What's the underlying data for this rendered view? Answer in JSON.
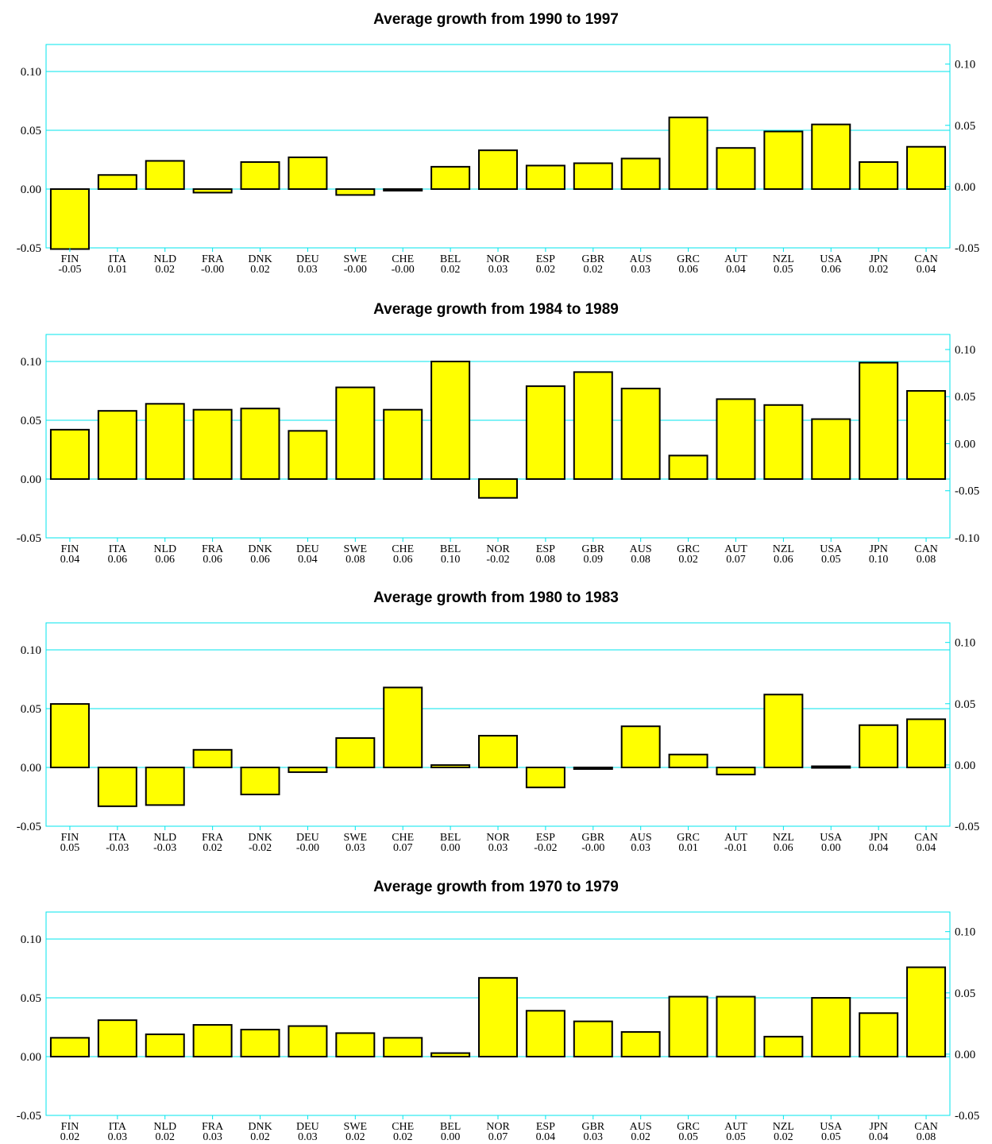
{
  "chart_data": [
    {
      "type": "bar",
      "title": "Average growth from 1990 to 1997",
      "categories": [
        "FIN",
        "ITA",
        "NLD",
        "FRA",
        "DNK",
        "DEU",
        "SWE",
        "CHE",
        "BEL",
        "NOR",
        "ESP",
        "GBR",
        "AUS",
        "GRC",
        "AUT",
        "NZL",
        "USA",
        "JPN",
        "CAN"
      ],
      "values": [
        -0.051,
        0.012,
        0.024,
        -0.003,
        0.023,
        0.027,
        -0.005,
        -0.001,
        0.019,
        0.033,
        0.02,
        0.022,
        0.026,
        0.061,
        0.035,
        0.049,
        0.055,
        0.023,
        0.036
      ],
      "value_labels": [
        "-0.05",
        "0.01",
        "0.02",
        "-0.00",
        "0.02",
        "0.03",
        "-0.00",
        "-0.00",
        "0.02",
        "0.03",
        "0.02",
        "0.02",
        "0.03",
        "0.06",
        "0.04",
        "0.05",
        "0.06",
        "0.02",
        "0.04"
      ],
      "ylim": [
        -0.05,
        0.1
      ],
      "y_ticks": [
        "-0.05",
        "0.00",
        "0.05",
        "0.10"
      ],
      "y2lim": [
        -0.05,
        0.1
      ],
      "y2_ticks": [
        "-0.05",
        "0.00",
        "0.05",
        "0.10"
      ],
      "bar_color": "#ffff00",
      "grid_color": "#00e5ee"
    },
    {
      "type": "bar",
      "title": "Average growth from 1984 to 1989",
      "categories": [
        "FIN",
        "ITA",
        "NLD",
        "FRA",
        "DNK",
        "DEU",
        "SWE",
        "CHE",
        "BEL",
        "NOR",
        "ESP",
        "GBR",
        "AUS",
        "GRC",
        "AUT",
        "NZL",
        "USA",
        "JPN",
        "CAN"
      ],
      "values": [
        0.042,
        0.058,
        0.064,
        0.059,
        0.06,
        0.041,
        0.078,
        0.059,
        0.1,
        -0.016,
        0.079,
        0.091,
        0.077,
        0.02,
        0.068,
        0.063,
        0.051,
        0.099,
        0.075
      ],
      "value_labels": [
        "0.04",
        "0.06",
        "0.06",
        "0.06",
        "0.06",
        "0.04",
        "0.08",
        "0.06",
        "0.10",
        "-0.02",
        "0.08",
        "0.09",
        "0.08",
        "0.02",
        "0.07",
        "0.06",
        "0.05",
        "0.10",
        "0.08"
      ],
      "ylim": [
        -0.05,
        0.1
      ],
      "y_ticks": [
        "-0.05",
        "0.00",
        "0.05",
        "0.10"
      ],
      "y2lim": [
        -0.1,
        0.1
      ],
      "y2_ticks": [
        "-0.10",
        "-0.05",
        "0.00",
        "0.05",
        "0.10"
      ],
      "bar_color": "#ffff00",
      "grid_color": "#00e5ee"
    },
    {
      "type": "bar",
      "title": "Average growth from 1980 to 1983",
      "categories": [
        "FIN",
        "ITA",
        "NLD",
        "FRA",
        "DNK",
        "DEU",
        "SWE",
        "CHE",
        "BEL",
        "NOR",
        "ESP",
        "GBR",
        "AUS",
        "GRC",
        "AUT",
        "NZL",
        "USA",
        "JPN",
        "CAN"
      ],
      "values": [
        0.054,
        -0.033,
        -0.032,
        0.015,
        -0.023,
        -0.004,
        0.025,
        0.068,
        0.002,
        0.027,
        -0.017,
        -0.001,
        0.035,
        0.011,
        -0.006,
        0.062,
        0.001,
        0.036,
        0.041
      ],
      "value_labels": [
        "0.05",
        "-0.03",
        "-0.03",
        "0.02",
        "-0.02",
        "-0.00",
        "0.03",
        "0.07",
        "0.00",
        "0.03",
        "-0.02",
        "-0.00",
        "0.03",
        "0.01",
        "-0.01",
        "0.06",
        "0.00",
        "0.04",
        "0.04"
      ],
      "ylim": [
        -0.05,
        0.1
      ],
      "y_ticks": [
        "-0.05",
        "0.00",
        "0.05",
        "0.10"
      ],
      "y2lim": [
        -0.05,
        0.1
      ],
      "y2_ticks": [
        "-0.05",
        "0.00",
        "0.05",
        "0.10"
      ],
      "bar_color": "#ffff00",
      "grid_color": "#00e5ee"
    },
    {
      "type": "bar",
      "title": "Average growth from 1970 to 1979",
      "categories": [
        "FIN",
        "ITA",
        "NLD",
        "FRA",
        "DNK",
        "DEU",
        "SWE",
        "CHE",
        "BEL",
        "NOR",
        "ESP",
        "GBR",
        "AUS",
        "GRC",
        "AUT",
        "NZL",
        "USA",
        "JPN",
        "CAN"
      ],
      "values": [
        0.016,
        0.031,
        0.019,
        0.027,
        0.023,
        0.026,
        0.02,
        0.016,
        0.003,
        0.067,
        0.039,
        0.03,
        0.021,
        0.051,
        0.051,
        0.017,
        0.05,
        0.037,
        0.076
      ],
      "value_labels": [
        "0.02",
        "0.03",
        "0.02",
        "0.03",
        "0.02",
        "0.03",
        "0.02",
        "0.02",
        "0.00",
        "0.07",
        "0.04",
        "0.03",
        "0.02",
        "0.05",
        "0.05",
        "0.02",
        "0.05",
        "0.04",
        "0.08"
      ],
      "ylim": [
        -0.05,
        0.1
      ],
      "y_ticks": [
        "-0.05",
        "0.00",
        "0.05",
        "0.10"
      ],
      "y2lim": [
        -0.05,
        0.1
      ],
      "y2_ticks": [
        "-0.05",
        "0.00",
        "0.05",
        "0.10"
      ],
      "bar_color": "#ffff00",
      "grid_color": "#00e5ee"
    }
  ]
}
